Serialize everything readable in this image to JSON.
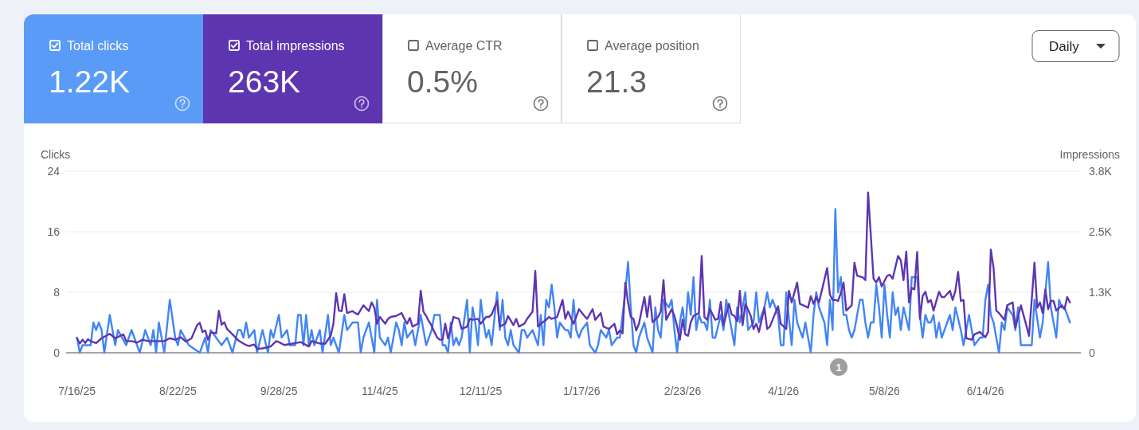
{
  "chart_data": [
    {
      "type": "other",
      "annotations": [
        "Total clicks",
        "1.22K",
        "Total impressions",
        "263K",
        "Average CTR",
        "0.5%",
        "Average position",
        "21.3",
        "Daily"
      ]
    },
    {
      "type": "line",
      "ylabel": "Clicks",
      "y2label": "Impressions",
      "grid": "y",
      "xlim": [
        "2025-07-12",
        "2026-07-19"
      ],
      "xticks": [
        {
          "value": "2025-07-16",
          "label": "7/16/25"
        },
        {
          "value": "2025-08-22",
          "label": "8/22/25"
        },
        {
          "value": "2025-09-28",
          "label": "9/28/25"
        },
        {
          "value": "2025-11-04",
          "label": "11/4/25"
        },
        {
          "value": "2025-12-11",
          "label": "12/11/25"
        },
        {
          "value": "2026-01-17",
          "label": "1/17/26"
        },
        {
          "value": "2026-02-23",
          "label": "2/23/26"
        },
        {
          "value": "2026-04-01",
          "label": "4/1/26"
        },
        {
          "value": "2026-05-08",
          "label": "5/8/26"
        },
        {
          "value": "2026-06-14",
          "label": "6/14/26"
        }
      ],
      "ylim": [
        0,
        24
      ],
      "yticks": [
        0,
        8,
        16,
        24
      ],
      "y2lim": [
        0,
        3750
      ],
      "y2ticks": [
        0,
        {
          "value": 1250,
          "label": "1.3K"
        },
        {
          "value": 2500,
          "label": "2.5K"
        },
        {
          "value": 3750,
          "label": "3.8K"
        }
      ],
      "annotations": [
        "1"
      ],
      "series": [
        {
          "color": "#4285f4",
          "x": [
            "2025-07-16",
            "2025-07-17",
            "2025-07-18",
            "2025-07-21",
            "2025-07-22",
            "2025-07-23",
            "2025-07-24",
            "2025-07-25",
            "2025-07-26",
            "2025-07-28",
            "2025-07-30",
            "2025-07-31",
            "2025-08-03",
            "2025-08-05",
            "2025-08-08",
            "2025-08-10",
            "2025-08-12",
            "2025-08-13",
            "2025-08-14",
            "2025-08-15",
            "2025-08-17",
            "2025-08-19",
            "2025-08-21",
            "2025-08-22",
            "2025-08-23",
            "2025-08-26",
            "2025-08-30",
            "2025-09-01",
            "2025-09-02",
            "2025-09-03",
            "2025-09-05",
            "2025-09-07",
            "2025-09-09",
            "2025-09-11",
            "2025-09-13",
            "2025-09-14",
            "2025-09-15",
            "2025-09-16",
            "2025-09-17",
            "2025-09-19",
            "2025-09-20",
            "2025-09-22",
            "2025-09-24",
            "2025-09-25",
            "2025-09-26",
            "2025-09-28",
            "2025-09-29",
            "2025-10-01",
            "2025-10-02",
            "2025-10-04",
            "2025-10-05",
            "2025-10-06",
            "2025-10-07",
            "2025-10-08",
            "2025-10-09",
            "2025-10-10",
            "2025-10-11",
            "2025-10-13",
            "2025-10-14",
            "2025-10-16",
            "2025-10-17",
            "2025-10-18",
            "2025-10-20",
            "2025-10-22",
            "2025-10-23",
            "2025-10-25",
            "2025-10-27",
            "2025-10-28",
            "2025-10-29",
            "2025-10-31",
            "2025-11-02",
            "2025-11-03",
            "2025-11-04",
            "2025-11-06",
            "2025-11-07",
            "2025-11-08",
            "2025-11-10",
            "2025-11-11",
            "2025-11-12",
            "2025-11-13",
            "2025-11-14",
            "2025-11-16",
            "2025-11-17",
            "2025-11-19",
            "2025-11-21",
            "2025-11-23",
            "2025-11-24",
            "2025-11-26",
            "2025-11-27",
            "2025-11-28",
            "2025-11-29",
            "2025-11-30",
            "2025-12-01",
            "2025-12-02",
            "2025-12-03",
            "2025-12-04",
            "2025-12-06",
            "2025-12-07",
            "2025-12-08",
            "2025-12-09",
            "2025-12-10",
            "2025-12-11",
            "2025-12-12",
            "2025-12-13",
            "2025-12-14",
            "2025-12-15",
            "2025-12-17",
            "2025-12-18",
            "2025-12-19",
            "2025-12-20",
            "2025-12-21",
            "2025-12-22",
            "2025-12-23",
            "2025-12-25",
            "2025-12-26",
            "2025-12-27",
            "2025-12-28",
            "2025-12-30",
            "2025-12-31",
            "2026-01-01",
            "2026-01-02",
            "2026-01-03",
            "2026-01-04",
            "2026-01-05",
            "2026-01-06",
            "2026-01-07",
            "2026-01-08",
            "2026-01-09",
            "2026-01-11",
            "2026-01-12",
            "2026-01-13",
            "2026-01-14",
            "2026-01-15",
            "2026-01-16",
            "2026-01-17",
            "2026-01-19",
            "2026-01-20",
            "2026-01-22",
            "2026-01-23",
            "2026-01-24",
            "2026-01-26",
            "2026-01-27",
            "2026-01-28",
            "2026-01-30",
            "2026-01-31",
            "2026-02-02",
            "2026-02-03",
            "2026-02-04",
            "2026-02-05",
            "2026-02-06",
            "2026-02-07",
            "2026-02-09",
            "2026-02-10",
            "2026-02-11",
            "2026-02-12",
            "2026-02-13",
            "2026-02-14",
            "2026-02-15",
            "2026-02-16",
            "2026-02-18",
            "2026-02-19",
            "2026-02-20",
            "2026-02-21",
            "2026-02-22",
            "2026-02-23",
            "2026-02-24",
            "2026-02-25",
            "2026-02-26",
            "2026-02-27",
            "2026-02-28",
            "2026-03-01",
            "2026-03-02",
            "2026-03-03",
            "2026-03-04",
            "2026-03-05",
            "2026-03-06",
            "2026-03-07",
            "2026-03-09",
            "2026-03-10",
            "2026-03-11",
            "2026-03-12",
            "2026-03-14",
            "2026-03-15",
            "2026-03-16",
            "2026-03-18",
            "2026-03-19",
            "2026-03-21",
            "2026-03-22",
            "2026-03-23",
            "2026-03-25",
            "2026-03-26",
            "2026-03-27",
            "2026-03-28",
            "2026-03-30",
            "2026-03-31",
            "2026-04-01",
            "2026-04-02",
            "2026-04-04",
            "2026-04-05",
            "2026-04-06",
            "2026-04-08",
            "2026-04-09",
            "2026-04-10",
            "2026-04-11",
            "2026-04-12",
            "2026-04-13",
            "2026-04-14",
            "2026-04-16",
            "2026-04-17",
            "2026-04-18",
            "2026-04-19",
            "2026-04-20",
            "2026-04-21",
            "2026-04-22",
            "2026-04-23",
            "2026-04-24",
            "2026-04-25",
            "2026-04-26",
            "2026-04-27",
            "2026-04-29",
            "2026-04-30",
            "2026-05-01",
            "2026-05-02",
            "2026-05-03",
            "2026-05-04",
            "2026-05-05",
            "2026-05-06",
            "2026-05-07",
            "2026-05-08",
            "2026-05-09",
            "2026-05-10",
            "2026-05-11",
            "2026-05-12",
            "2026-05-13",
            "2026-05-14",
            "2026-05-15",
            "2026-05-17",
            "2026-05-18",
            "2026-05-19",
            "2026-05-20",
            "2026-05-21",
            "2026-05-22",
            "2026-05-23",
            "2026-05-24",
            "2026-05-25",
            "2026-05-26",
            "2026-05-27",
            "2026-05-28",
            "2026-05-29",
            "2026-05-31",
            "2026-06-01",
            "2026-06-02",
            "2026-06-03",
            "2026-06-05",
            "2026-06-06",
            "2026-06-08",
            "2026-06-09",
            "2026-06-10",
            "2026-06-12",
            "2026-06-13",
            "2026-06-14",
            "2026-06-15",
            "2026-06-16",
            "2026-06-17",
            "2026-06-19",
            "2026-06-20",
            "2026-06-21",
            "2026-06-22",
            "2026-06-24",
            "2026-06-25",
            "2026-06-26",
            "2026-06-27",
            "2026-06-29",
            "2026-07-01",
            "2026-07-02",
            "2026-07-04",
            "2026-07-05",
            "2026-07-07",
            "2026-07-08",
            "2026-07-10",
            "2026-07-11",
            "2026-07-12",
            "2026-07-13",
            "2026-07-15"
          ],
          "values": [
            2,
            0,
            1,
            1,
            4,
            3,
            4,
            3,
            0,
            5,
            1,
            3,
            1,
            3,
            0,
            3,
            1,
            3,
            0,
            4,
            0,
            7,
            2,
            1,
            3,
            1,
            0,
            2,
            0,
            3,
            2,
            1,
            2,
            0,
            3,
            3,
            2,
            4,
            2,
            3,
            0,
            3,
            0,
            3,
            2,
            5,
            2,
            3,
            1,
            1,
            5,
            5,
            1,
            5,
            1,
            3,
            1,
            3,
            0,
            5,
            1,
            2,
            0,
            5,
            3,
            4,
            4,
            0,
            2,
            4,
            0,
            7,
            2,
            1,
            2,
            0,
            4,
            3,
            1,
            4,
            2,
            3,
            1,
            5,
            1,
            3,
            5,
            5,
            1,
            1,
            0,
            4,
            1,
            2,
            1,
            2,
            7,
            0,
            6,
            4,
            1,
            7,
            4,
            2,
            3,
            1,
            8,
            3,
            7,
            2,
            1,
            3,
            1,
            0,
            3,
            3,
            2,
            3,
            2,
            1,
            5,
            1,
            7,
            6,
            9,
            6,
            2,
            4,
            3,
            3,
            2,
            7,
            3,
            2,
            3,
            4,
            1,
            0,
            1,
            3,
            2,
            3,
            1,
            2,
            2,
            8,
            12,
            6,
            1,
            0,
            2,
            4,
            2,
            1,
            0,
            6,
            3,
            2,
            7,
            6,
            7,
            3,
            0,
            4,
            6,
            3,
            8,
            5,
            10,
            3,
            5,
            4,
            4,
            3,
            7,
            2,
            2,
            5,
            3,
            7,
            5,
            1,
            6,
            4,
            8,
            3,
            4,
            8,
            4,
            6,
            8,
            6,
            7,
            5,
            1,
            1,
            8,
            1,
            7,
            4,
            2,
            4,
            2,
            0,
            5,
            8,
            6,
            4,
            1,
            7,
            3,
            19,
            8,
            10,
            5,
            5,
            3,
            2,
            3,
            7,
            7,
            4,
            2,
            4,
            4,
            9,
            6,
            2,
            9,
            5,
            2,
            8,
            5,
            6,
            3,
            6,
            3,
            10,
            10,
            10,
            5,
            2,
            5,
            4,
            4,
            5,
            2,
            4,
            2,
            4,
            5,
            3,
            6,
            3,
            1,
            5,
            3,
            1,
            2,
            2,
            7,
            9,
            5,
            4,
            0,
            4,
            3,
            6,
            5,
            3,
            6,
            1,
            1,
            1,
            7,
            2,
            4,
            12,
            6,
            2,
            7,
            6,
            6,
            4
          ]
        },
        {
          "color": "#5e35b1",
          "axis": "y2",
          "x": [
            "2025-07-16",
            "2025-07-17",
            "2025-07-18",
            "2025-07-19",
            "2025-07-20",
            "2025-07-21",
            "2025-07-23",
            "2025-07-25",
            "2025-07-28",
            "2025-07-30",
            "2025-08-02",
            "2025-08-03",
            "2025-08-05",
            "2025-08-07",
            "2025-08-09",
            "2025-08-11",
            "2025-08-13",
            "2025-08-15",
            "2025-08-17",
            "2025-08-19",
            "2025-08-21",
            "2025-08-23",
            "2025-08-25",
            "2025-08-27",
            "2025-08-29",
            "2025-08-30",
            "2025-08-31",
            "2025-09-01",
            "2025-09-02",
            "2025-09-03",
            "2025-09-05",
            "2025-09-06",
            "2025-09-07",
            "2025-09-08",
            "2025-09-09",
            "2025-09-11",
            "2025-09-13",
            "2025-09-15",
            "2025-09-16",
            "2025-09-17",
            "2025-09-19",
            "2025-09-20",
            "2025-09-22",
            "2025-09-25",
            "2025-09-27",
            "2025-09-28",
            "2025-09-30",
            "2025-10-03",
            "2025-10-06",
            "2025-10-09",
            "2025-10-10",
            "2025-10-13",
            "2025-10-15",
            "2025-10-17",
            "2025-10-18",
            "2025-10-19",
            "2025-10-20",
            "2025-10-21",
            "2025-10-22",
            "2025-10-23",
            "2025-10-25",
            "2025-10-26",
            "2025-10-27",
            "2025-10-29",
            "2025-10-31",
            "2025-11-01",
            "2025-11-02",
            "2025-11-03",
            "2025-11-04",
            "2025-11-06",
            "2025-11-07",
            "2025-11-08",
            "2025-11-10",
            "2025-11-12",
            "2025-11-13",
            "2025-11-14",
            "2025-11-15",
            "2025-11-16",
            "2025-11-18",
            "2025-11-19",
            "2025-11-20",
            "2025-11-21",
            "2025-11-22",
            "2025-11-23",
            "2025-11-24",
            "2025-11-25",
            "2025-11-26",
            "2025-11-27",
            "2025-11-28",
            "2025-11-29",
            "2025-11-30",
            "2025-12-01",
            "2025-12-03",
            "2025-12-04",
            "2025-12-06",
            "2025-12-07",
            "2025-12-08",
            "2025-12-10",
            "2025-12-11",
            "2025-12-13",
            "2025-12-14",
            "2025-12-15",
            "2025-12-17",
            "2025-12-18",
            "2025-12-20",
            "2025-12-21",
            "2025-12-23",
            "2025-12-24",
            "2025-12-25",
            "2025-12-27",
            "2025-12-28",
            "2025-12-30",
            "2025-12-31",
            "2026-01-01",
            "2026-01-02",
            "2026-01-04",
            "2026-01-05",
            "2026-01-06",
            "2026-01-08",
            "2026-01-10",
            "2026-01-11",
            "2026-01-12",
            "2026-01-14",
            "2026-01-15",
            "2026-01-16",
            "2026-01-18",
            "2026-01-19",
            "2026-01-21",
            "2026-01-22",
            "2026-01-24",
            "2026-01-25",
            "2026-01-27",
            "2026-01-29",
            "2026-01-30",
            "2026-01-31",
            "2026-02-01",
            "2026-02-02",
            "2026-02-03",
            "2026-02-04",
            "2026-02-05",
            "2026-02-06",
            "2026-02-07",
            "2026-02-09",
            "2026-02-10",
            "2026-02-11",
            "2026-02-12",
            "2026-02-14",
            "2026-02-15",
            "2026-02-16",
            "2026-02-17",
            "2026-02-19",
            "2026-02-20",
            "2026-02-21",
            "2026-02-22",
            "2026-02-23",
            "2026-02-24",
            "2026-02-25",
            "2026-02-26",
            "2026-02-27",
            "2026-03-01",
            "2026-03-02",
            "2026-03-03",
            "2026-03-04",
            "2026-03-05",
            "2026-03-07",
            "2026-03-08",
            "2026-03-09",
            "2026-03-10",
            "2026-03-12",
            "2026-03-13",
            "2026-03-14",
            "2026-03-15",
            "2026-03-16",
            "2026-03-17",
            "2026-03-18",
            "2026-03-20",
            "2026-03-21",
            "2026-03-22",
            "2026-03-23",
            "2026-03-25",
            "2026-03-26",
            "2026-03-27",
            "2026-03-28",
            "2026-03-30",
            "2026-03-31",
            "2026-04-02",
            "2026-04-03",
            "2026-04-04",
            "2026-04-06",
            "2026-04-07",
            "2026-04-09",
            "2026-04-10",
            "2026-04-11",
            "2026-04-12",
            "2026-04-13",
            "2026-04-14",
            "2026-04-17",
            "2026-04-18",
            "2026-04-19",
            "2026-04-20",
            "2026-04-21",
            "2026-04-22",
            "2026-04-23",
            "2026-04-24",
            "2026-04-26",
            "2026-04-27",
            "2026-04-28",
            "2026-04-30",
            "2026-05-01",
            "2026-05-02",
            "2026-05-04",
            "2026-05-05",
            "2026-05-06",
            "2026-05-07",
            "2026-05-09",
            "2026-05-10",
            "2026-05-11",
            "2026-05-13",
            "2026-05-14",
            "2026-05-15",
            "2026-05-16",
            "2026-05-17",
            "2026-05-18",
            "2026-05-19",
            "2026-05-20",
            "2026-05-21",
            "2026-05-22",
            "2026-05-23",
            "2026-05-24",
            "2026-05-25",
            "2026-05-26",
            "2026-05-28",
            "2026-05-29",
            "2026-05-30",
            "2026-06-01",
            "2026-06-02",
            "2026-06-03",
            "2026-06-04",
            "2026-06-05",
            "2026-06-06",
            "2026-06-07",
            "2026-06-09",
            "2026-06-10",
            "2026-06-12",
            "2026-06-14",
            "2026-06-15",
            "2026-06-16",
            "2026-06-17",
            "2026-06-18",
            "2026-06-19",
            "2026-06-21",
            "2026-06-22",
            "2026-06-24",
            "2026-06-25",
            "2026-06-27",
            "2026-06-29",
            "2026-06-30",
            "2026-07-02",
            "2026-07-03",
            "2026-07-04",
            "2026-07-05",
            "2026-07-06",
            "2026-07-07",
            "2026-07-08",
            "2026-07-09",
            "2026-07-10",
            "2026-07-12",
            "2026-07-13",
            "2026-07-14",
            "2026-07-15"
          ],
          "values": [
            300,
            190,
            270,
            200,
            280,
            240,
            200,
            300,
            390,
            300,
            380,
            240,
            240,
            210,
            270,
            240,
            240,
            240,
            240,
            300,
            270,
            320,
            230,
            300,
            570,
            620,
            430,
            460,
            270,
            420,
            400,
            870,
            580,
            630,
            490,
            380,
            260,
            190,
            160,
            140,
            170,
            80,
            90,
            130,
            240,
            220,
            160,
            190,
            220,
            130,
            240,
            190,
            190,
            350,
            600,
            1230,
            870,
            860,
            1210,
            820,
            860,
            820,
            790,
            980,
            860,
            1040,
            930,
            600,
            740,
            600,
            700,
            740,
            760,
            820,
            700,
            600,
            720,
            540,
            600,
            1280,
            850,
            760,
            650,
            560,
            430,
            320,
            270,
            270,
            600,
            300,
            490,
            740,
            700,
            490,
            540,
            700,
            680,
            700,
            600,
            740,
            740,
            790,
            1070,
            540,
            600,
            760,
            570,
            700,
            540,
            600,
            700,
            850,
            1690,
            540,
            600,
            680,
            740,
            700,
            740,
            1090,
            700,
            850,
            600,
            740,
            900,
            760,
            700,
            900,
            680,
            820,
            540,
            490,
            600,
            380,
            460,
            400,
            1450,
            1040,
            740,
            700,
            460,
            600,
            1150,
            740,
            1170,
            630,
            740,
            850,
            1500,
            680,
            900,
            760,
            540,
            270,
            680,
            380,
            350,
            630,
            760,
            820,
            2000,
            740,
            680,
            900,
            680,
            700,
            1050,
            570,
            1010,
            790,
            760,
            650,
            1280,
            570,
            1010,
            760,
            490,
            600,
            430,
            930,
            490,
            540,
            680,
            960,
            600,
            490,
            1280,
            1040,
            1450,
            1010,
            960,
            930,
            1170,
            1010,
            1150,
            1040,
            1750,
            1200,
            1090,
            1090,
            1070,
            1230,
            1450,
            870,
            980,
            1860,
            1590,
            1560,
            1500,
            3310,
            1530,
            1450,
            1560,
            1370,
            1590,
            1610,
            1530,
            2000,
            1910,
            1500,
            2090,
            1040,
            1340,
            1310,
            2080,
            700,
            1170,
            1260,
            1040,
            1090,
            870,
            1260,
            1150,
            1150,
            1280,
            1090,
            1280,
            1670,
            1070,
            1090,
            300,
            270,
            380,
            430,
            320,
            430,
            2130,
            1750,
            870,
            820,
            680,
            980,
            1040,
            520,
            980,
            570,
            350,
            1860,
            930,
            1040,
            820,
            1310,
            900,
            1070,
            1070,
            870,
            980,
            900,
            1150,
            1040
          ]
        }
      ]
    }
  ]
}
